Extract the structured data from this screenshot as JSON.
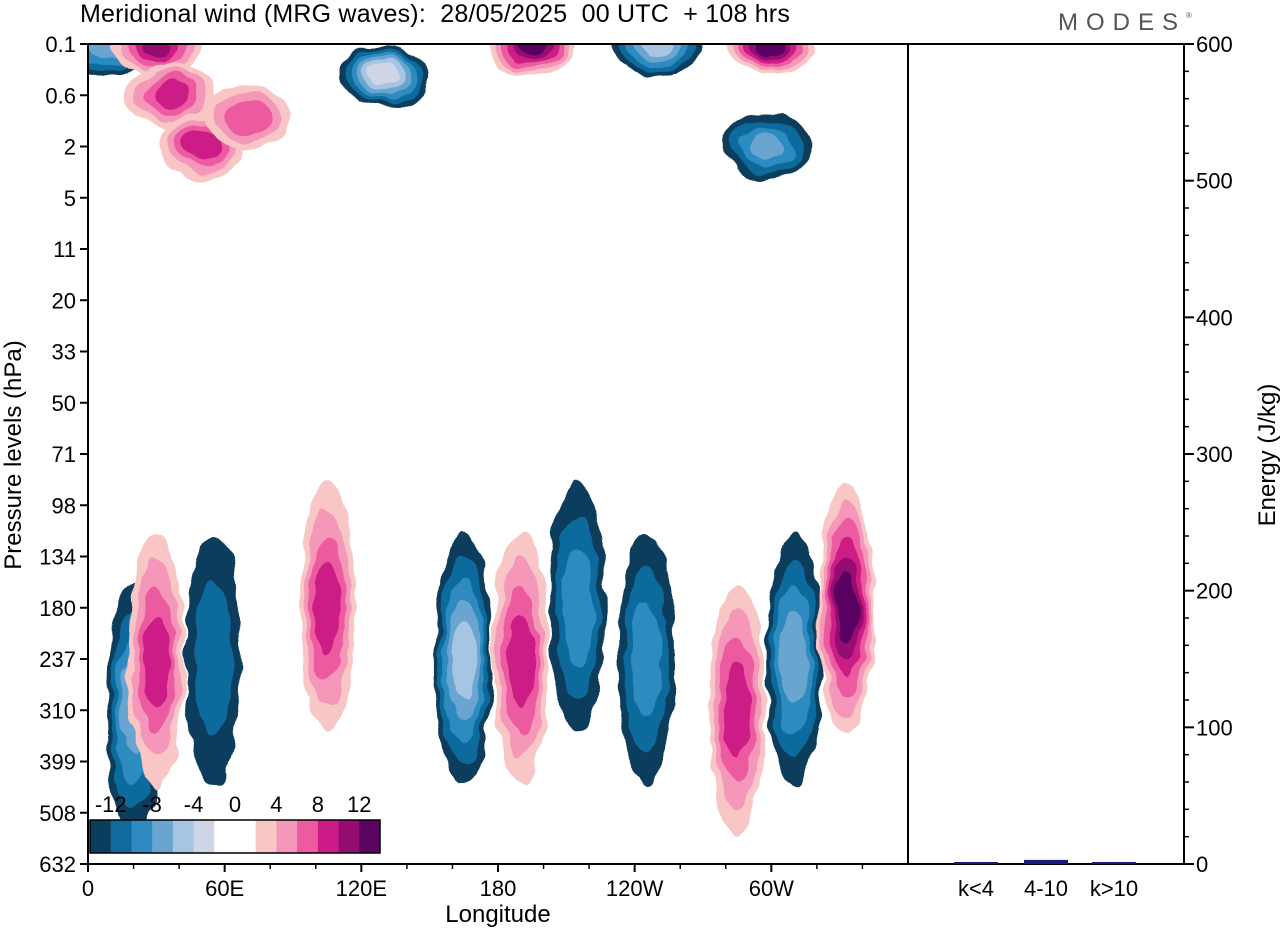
{
  "header": {
    "title": "Meridional wind (MRG waves):  28/05/2025  00 UTC  + 108 hrs",
    "brand": "MODES",
    "brand_mark": "®"
  },
  "colors": {
    "neg": [
      "#0b3e5c",
      "#106a9d",
      "#2e8bc0",
      "#6aa4d0",
      "#a6c5e2",
      "#d0d5e6"
    ],
    "pos": [
      "#f9c6c6",
      "#f597b8",
      "#ec5aa0",
      "#cc1a86",
      "#960d72",
      "#5a0462"
    ],
    "bar": "#1a1a7a"
  },
  "chart_data": [
    {
      "type": "heatmap",
      "title": "Meridional wind (MRG waves):  28/05/2025  00 UTC  + 108 hrs",
      "xlabel": "Longitude",
      "ylabel": "Pressure levels (hPa)",
      "x_ticks": [
        "0",
        "60E",
        "120E",
        "180",
        "120W",
        "60W"
      ],
      "y_ticks": [
        "0.1",
        "0.6",
        "2",
        "5",
        "11",
        "20",
        "33",
        "50",
        "71",
        "98",
        "134",
        "180",
        "237",
        "310",
        "399",
        "508",
        "632"
      ],
      "colorbar": {
        "tick_labels": [
          "-12",
          "-8",
          "-4",
          "0",
          "4",
          "8",
          "12"
        ],
        "levels": [
          -14,
          -12,
          -10,
          -8,
          -6,
          -4,
          -2,
          2,
          4,
          6,
          8,
          10,
          12,
          14
        ]
      },
      "features": [
        {
          "lon": 8,
          "level": "0.1",
          "value": -8
        },
        {
          "lon": 30,
          "level": "0.1",
          "value": 10
        },
        {
          "lon": 37,
          "level": "0.6",
          "value": 8
        },
        {
          "lon": 50,
          "level": "2",
          "value": 8
        },
        {
          "lon": 70,
          "level": "1",
          "value": 6
        },
        {
          "lon": 130,
          "level": "0.3",
          "value": -14
        },
        {
          "lon": 195,
          "level": "0.1",
          "value": 12
        },
        {
          "lon": 250,
          "level": "0.1",
          "value": -10
        },
        {
          "lon": 300,
          "level": "0.1",
          "value": 12
        },
        {
          "lon": 298,
          "level": "2",
          "value": -8
        },
        {
          "lon": 20,
          "level": "310",
          "value": -8
        },
        {
          "lon": 30,
          "level": "237",
          "value": 8
        },
        {
          "lon": 55,
          "level": "237",
          "value": -4
        },
        {
          "lon": 105,
          "level": "180",
          "value": 8
        },
        {
          "lon": 165,
          "level": "237",
          "value": -10
        },
        {
          "lon": 190,
          "level": "237",
          "value": 8
        },
        {
          "lon": 215,
          "level": "180",
          "value": -6
        },
        {
          "lon": 245,
          "level": "237",
          "value": -6
        },
        {
          "lon": 285,
          "level": "310",
          "value": 8
        },
        {
          "lon": 310,
          "level": "237",
          "value": -8
        },
        {
          "lon": 333,
          "level": "180",
          "value": 12
        }
      ]
    },
    {
      "type": "bar",
      "ylabel": "Energy (J/kg)",
      "categories": [
        "k<4",
        "4-10",
        "k>10"
      ],
      "values": [
        0.5,
        3,
        0.5
      ],
      "ylim": [
        0,
        600
      ],
      "y_ticks": [
        "0",
        "100",
        "200",
        "300",
        "400",
        "500",
        "600"
      ]
    }
  ]
}
